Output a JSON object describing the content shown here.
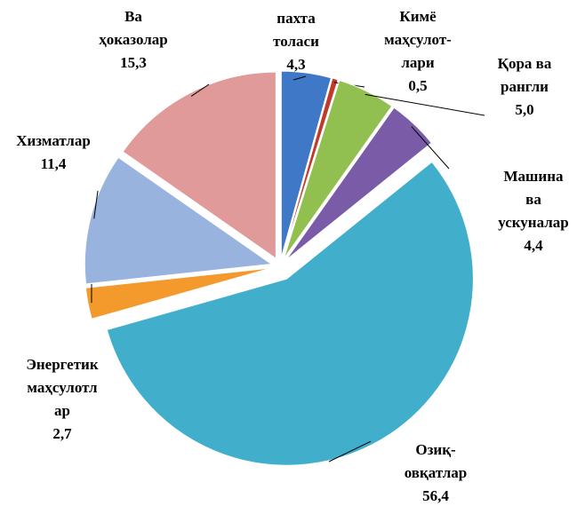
{
  "chart_data": {
    "type": "pie",
    "categories": [
      "пахта\nтоласи",
      "Кимё\nмаҳсулот-\nлари",
      "Қора ва\nрангли",
      "Машина\nва\nускуналар",
      "Озиқ-\nовқатлар",
      "Энергетик\nмаҳсулотл\nар",
      "Хизматлар",
      "Ва\nҳоказолар"
    ],
    "values": [
      4.3,
      0.5,
      5.0,
      4.4,
      56.4,
      2.7,
      11.4,
      15.3
    ],
    "value_labels": [
      "4,3",
      "0,5",
      "5,0",
      "4,4",
      "56,4",
      "2,7",
      "11,4",
      "15,3"
    ],
    "colors": [
      "#3f78c6",
      "#c0392b",
      "#92c050",
      "#7a5ba8",
      "#41aecb",
      "#f49a2c",
      "#98b4de",
      "#e09a9a"
    ]
  }
}
